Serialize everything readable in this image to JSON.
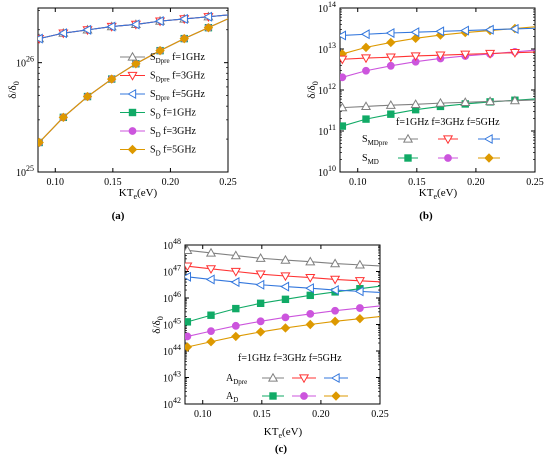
{
  "chart_data": [
    {
      "panel_label": "(a)",
      "type": "line",
      "xlabel": "KTe(eV)",
      "ylabel": "δ/δ0",
      "xlim": [
        0.085,
        0.25
      ],
      "ylim_log10": [
        25,
        26.5
      ],
      "yscale": "log",
      "x_ticks": [
        "0.10",
        "0.15",
        "0.20",
        "0.25"
      ],
      "y_ticks": [
        {
          "base": "10",
          "exp": "25",
          "value": 25
        },
        {
          "base": "10",
          "exp": "26",
          "value": 26
        }
      ],
      "x": [
        0.086,
        0.107,
        0.128,
        0.149,
        0.17,
        0.191,
        0.212,
        0.233
      ],
      "series": [
        {
          "name": "S_Dpre f=1GHz",
          "marker": "triangle-up",
          "color": "#808080",
          "log10_values": [
            26.22,
            26.27,
            26.3,
            26.33,
            26.35,
            26.38,
            26.4,
            26.42
          ]
        },
        {
          "name": "S_Dpre f=3GHz",
          "marker": "triangle-down",
          "color": "#ff3333",
          "log10_values": [
            26.22,
            26.27,
            26.3,
            26.33,
            26.35,
            26.38,
            26.4,
            26.42
          ]
        },
        {
          "name": "S_Dpre f=5GHz",
          "marker": "triangle-left",
          "color": "#3377dd",
          "log10_values": [
            26.22,
            26.27,
            26.3,
            26.33,
            26.35,
            26.38,
            26.4,
            26.42
          ]
        },
        {
          "name": "S_D f=1GHz",
          "marker": "square",
          "color": "#11aa66",
          "log10_values": [
            25.27,
            25.5,
            25.69,
            25.85,
            25.99,
            26.11,
            26.22,
            26.32
          ]
        },
        {
          "name": "S_D f=3GHz",
          "marker": "circle",
          "color": "#cc55dd",
          "log10_values": [
            25.27,
            25.5,
            25.69,
            25.85,
            25.99,
            26.11,
            26.22,
            26.32
          ]
        },
        {
          "name": "S_D f=5GHz",
          "marker": "diamond",
          "color": "#dd9900",
          "log10_values": [
            25.27,
            25.5,
            25.69,
            25.85,
            25.99,
            26.11,
            26.22,
            26.32
          ]
        }
      ],
      "legend": [
        {
          "main": "S",
          "sub": "Dpre",
          "tail": " f=1GHz"
        },
        {
          "main": "S",
          "sub": "Dpre",
          "tail": " f=3GHz"
        },
        {
          "main": "S",
          "sub": "Dpre",
          "tail": " f=5GHz"
        },
        {
          "main": "S",
          "sub": "D",
          "tail": "  f=1GHz"
        },
        {
          "main": "S",
          "sub": "D",
          "tail": "  f=3GHz"
        },
        {
          "main": "S",
          "sub": "D",
          "tail": "  f=5GHz"
        }
      ]
    },
    {
      "panel_label": "(b)",
      "type": "line",
      "xlabel": "KTe(eV)",
      "ylabel": "δ/δ0",
      "xlim": [
        0.085,
        0.25
      ],
      "ylim_log10": [
        10,
        14
      ],
      "yscale": "log",
      "x_ticks": [
        "0.10",
        "0.15",
        "0.20",
        "0.25"
      ],
      "y_ticks": [
        {
          "base": "10",
          "exp": "10",
          "value": 10
        },
        {
          "base": "10",
          "exp": "11",
          "value": 11
        },
        {
          "base": "10",
          "exp": "12",
          "value": 12
        },
        {
          "base": "10",
          "exp": "13",
          "value": 13
        },
        {
          "base": "10",
          "exp": "14",
          "value": 14
        }
      ],
      "x": [
        0.087,
        0.107,
        0.128,
        0.149,
        0.17,
        0.191,
        0.212,
        0.233
      ],
      "series": [
        {
          "name": "S_MDpre f=1GHz",
          "marker": "triangle-up",
          "color": "#808080",
          "log10_values": [
            11.57,
            11.6,
            11.63,
            11.65,
            11.68,
            11.7,
            11.72,
            11.74
          ]
        },
        {
          "name": "S_MDpre f=3GHz",
          "marker": "triangle-down",
          "color": "#ff3333",
          "log10_values": [
            12.75,
            12.78,
            12.8,
            12.83,
            12.85,
            12.87,
            12.89,
            12.91
          ]
        },
        {
          "name": "S_MDpre f=5GHz",
          "marker": "triangle-left",
          "color": "#3377dd",
          "log10_values": [
            13.33,
            13.36,
            13.39,
            13.41,
            13.43,
            13.45,
            13.47,
            13.49
          ]
        },
        {
          "name": "S_MD f=1GHz",
          "marker": "square",
          "color": "#11aa66",
          "log10_values": [
            11.12,
            11.29,
            11.41,
            11.52,
            11.6,
            11.66,
            11.71,
            11.75
          ]
        },
        {
          "name": "S_MD f=3GHz",
          "marker": "circle",
          "color": "#cc55dd",
          "log10_values": [
            12.31,
            12.47,
            12.59,
            12.69,
            12.77,
            12.83,
            12.88,
            12.93
          ]
        },
        {
          "name": "S_MD f=5GHz",
          "marker": "diamond",
          "color": "#dd9900",
          "log10_values": [
            12.88,
            13.04,
            13.16,
            13.26,
            13.34,
            13.4,
            13.45,
            13.5
          ]
        }
      ],
      "legend_header": "f=1GHz f=3GHz f=5GHz",
      "legend_rows": [
        {
          "main": "S",
          "sub": "MDpre"
        },
        {
          "main": "S",
          "sub": "MD"
        }
      ]
    },
    {
      "panel_label": "(c)",
      "type": "line",
      "xlabel": "KTe(eV)",
      "ylabel": "δ/δ0",
      "xlim": [
        0.085,
        0.25
      ],
      "ylim_log10": [
        42,
        48
      ],
      "yscale": "log",
      "x_ticks": [
        "0.10",
        "0.15",
        "0.20",
        "0.25"
      ],
      "y_ticks": [
        {
          "base": "10",
          "exp": "42",
          "value": 42
        },
        {
          "base": "10",
          "exp": "43",
          "value": 43
        },
        {
          "base": "10",
          "exp": "44",
          "value": 44
        },
        {
          "base": "10",
          "exp": "45",
          "value": 45
        },
        {
          "base": "10",
          "exp": "46",
          "value": 46
        },
        {
          "base": "10",
          "exp": "47",
          "value": 47
        },
        {
          "base": "10",
          "exp": "48",
          "value": 48
        }
      ],
      "x": [
        0.087,
        0.107,
        0.128,
        0.149,
        0.17,
        0.191,
        0.212,
        0.233
      ],
      "series": [
        {
          "name": "A_Dpre f=1GHz",
          "marker": "triangle-up",
          "color": "#808080",
          "log10_values": [
            47.8,
            47.7,
            47.6,
            47.5,
            47.43,
            47.37,
            47.3,
            47.25
          ]
        },
        {
          "name": "A_Dpre f=3GHz",
          "marker": "triangle-down",
          "color": "#ff3333",
          "log10_values": [
            47.2,
            47.1,
            47.0,
            46.9,
            46.83,
            46.77,
            46.7,
            46.65
          ]
        },
        {
          "name": "A_Dpre f=5GHz",
          "marker": "triangle-left",
          "color": "#3377dd",
          "log10_values": [
            46.8,
            46.7,
            46.6,
            46.5,
            46.43,
            46.37,
            46.3,
            46.25
          ]
        },
        {
          "name": "A_D f=1GHz",
          "marker": "square",
          "color": "#11aa66",
          "log10_values": [
            45.1,
            45.35,
            45.6,
            45.8,
            45.95,
            46.1,
            46.23,
            46.35
          ]
        },
        {
          "name": "A_D f=3GHz",
          "marker": "circle",
          "color": "#cc55dd",
          "log10_values": [
            44.55,
            44.75,
            44.95,
            45.12,
            45.27,
            45.4,
            45.52,
            45.62
          ]
        },
        {
          "name": "A_D f=5GHz",
          "marker": "diamond",
          "color": "#dd9900",
          "log10_values": [
            44.15,
            44.35,
            44.55,
            44.72,
            44.87,
            45.0,
            45.12,
            45.22
          ]
        }
      ],
      "legend_header": "f=1GHz f=3GHz f=5GHz",
      "legend_rows": [
        {
          "main": "A",
          "sub": "Dpre"
        },
        {
          "main": "A",
          "sub": "D"
        }
      ]
    }
  ]
}
